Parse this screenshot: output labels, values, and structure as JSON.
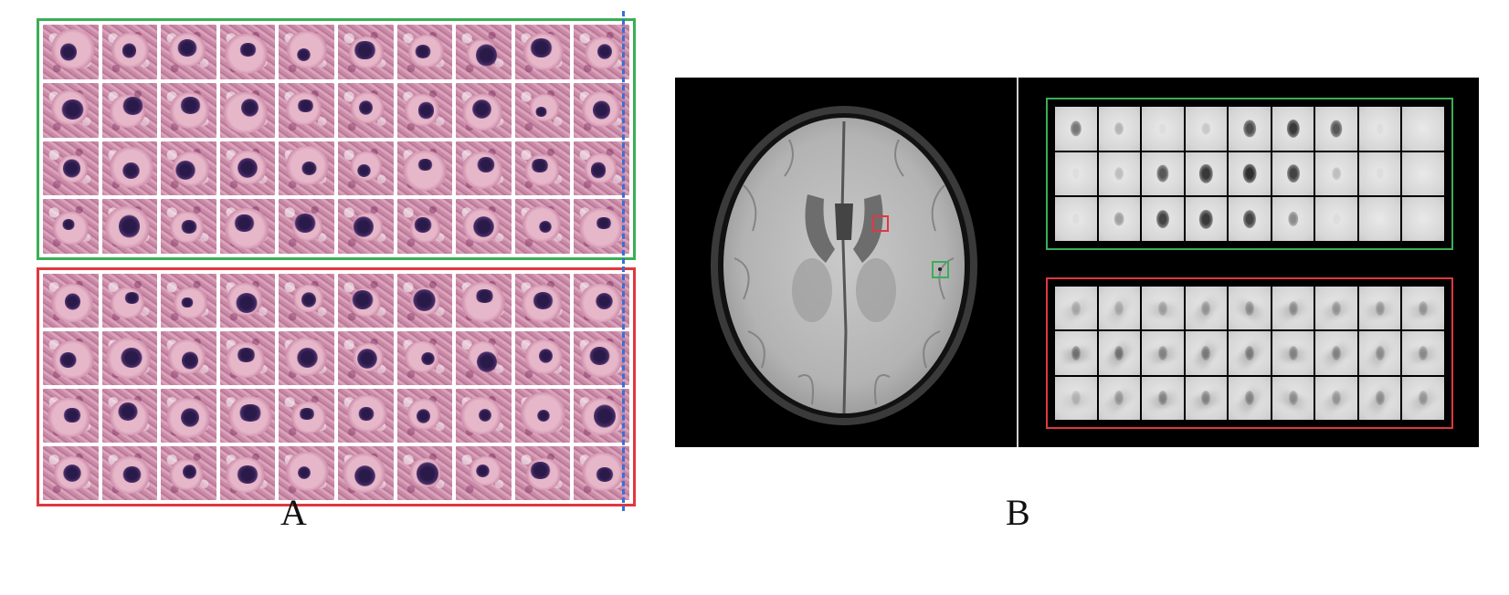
{
  "panels": {
    "a_label": "A",
    "b_label": "B"
  },
  "colors": {
    "cmb_box": "#3aae56",
    "mimic_box": "#e0383f",
    "divider": "#3b6fd1"
  },
  "panel_a": {
    "rows_per_grid": 4,
    "cols_per_grid": 10
  },
  "panel_b": {
    "rows_per_grid": 3,
    "cols_per_grid": 9,
    "green_intensity": [
      [
        0.55,
        0.25,
        0.05,
        0.15,
        0.75,
        0.85,
        0.7,
        0.05,
        0.0
      ],
      [
        0.05,
        0.2,
        0.7,
        0.85,
        0.9,
        0.8,
        0.2,
        0.05,
        0.0
      ],
      [
        0.05,
        0.35,
        0.8,
        0.85,
        0.8,
        0.45,
        0.05,
        0.0,
        0.0
      ]
    ],
    "red_intensity": [
      [
        0.25,
        0.25,
        0.3,
        0.35,
        0.4,
        0.4,
        0.35,
        0.35,
        0.35
      ],
      [
        0.55,
        0.55,
        0.45,
        0.5,
        0.5,
        0.45,
        0.45,
        0.4,
        0.4
      ],
      [
        0.2,
        0.35,
        0.45,
        0.45,
        0.45,
        0.4,
        0.35,
        0.4,
        0.35
      ]
    ]
  }
}
